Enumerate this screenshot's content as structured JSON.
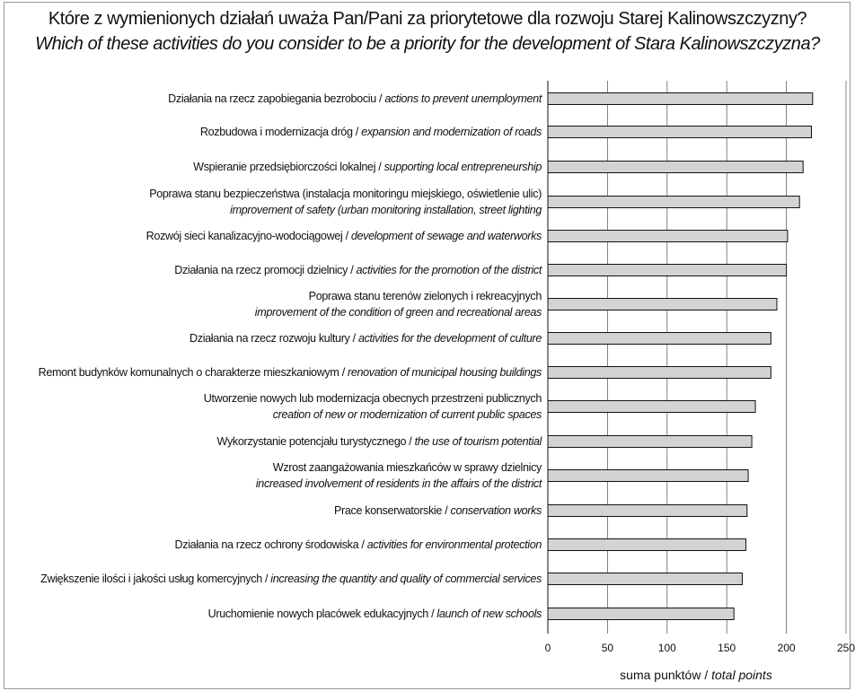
{
  "title_pl": "Które z wymienionych działań uważa Pan/Pani za priorytetowe dla rozwoju  Starej Kalinowszczyzny?",
  "title_en": "Which of these activities do you consider to be a priority for the development of Stara Kalinowszczyzna?",
  "chart_data": {
    "type": "bar",
    "orientation": "horizontal",
    "title": "Które z wymienionych działań uważa Pan/Pani za priorytetowe dla rozwoju  Starej Kalinowszczyzny?",
    "subtitle": "Which of these activities do you consider to be a priority for the development of Stara Kalinowszczyzna?",
    "xlabel": "suma punktów / total points",
    "xlabel_pl": "suma punktów /",
    "xlabel_en": "total points",
    "ylabel": "",
    "xlim": [
      0,
      250
    ],
    "xticks": [
      0,
      50,
      100,
      150,
      200,
      250
    ],
    "grid": "vertical",
    "legend": "none",
    "bar_color": "#d3d3d3",
    "bar_edge_color": "#111111",
    "categories": [
      {
        "lines": [
          {
            "pl": "Działania na rzecz zapobiegania bezrobociu / ",
            "en": "actions to prevent unemployment"
          }
        ]
      },
      {
        "lines": [
          {
            "pl": "Rozbudowa i modernizacja dróg / ",
            "en": "expansion and modernization of roads"
          }
        ]
      },
      {
        "lines": [
          {
            "pl": "Wspieranie przedsiębiorczości lokalnej / ",
            "en": "supporting local entrepreneurship"
          }
        ]
      },
      {
        "lines": [
          {
            "pl": "Poprawa stanu bezpieczeństwa (instalacja monitoringu miejskiego, oświetlenie ulic)",
            "en": ""
          },
          {
            "pl": "",
            "en": "improvement of safety (urban monitoring installation, street lighting"
          }
        ]
      },
      {
        "lines": [
          {
            "pl": "Rozwój sieci kanalizacyjno-wodociągowej / ",
            "en": "development of sewage and waterworks"
          }
        ]
      },
      {
        "lines": [
          {
            "pl": "Działania na rzecz promocji dzielnicy / ",
            "en": "activities for the promotion of the district"
          }
        ]
      },
      {
        "lines": [
          {
            "pl": "Poprawa stanu terenów zielonych i rekreacyjnych",
            "en": ""
          },
          {
            "pl": "",
            "en": "improvement of the condition of green and recreational areas"
          }
        ]
      },
      {
        "lines": [
          {
            "pl": "Działania na rzecz rozwoju kultury / ",
            "en": "activities for the development of culture"
          }
        ]
      },
      {
        "lines": [
          {
            "pl": "Remont budynków komunalnych o charakterze mieszkaniowym / ",
            "en": "renovation of municipal housing buildings"
          }
        ]
      },
      {
        "lines": [
          {
            "pl": "Utworzenie nowych lub modernizacja obecnych przestrzeni publicznych",
            "en": ""
          },
          {
            "pl": "",
            "en": "creation of new or modernization of current public spaces"
          }
        ]
      },
      {
        "lines": [
          {
            "pl": "Wykorzystanie potencjału turystycznego / ",
            "en": "the use of tourism potential"
          }
        ]
      },
      {
        "lines": [
          {
            "pl": "Wzrost zaangażowania mieszkańców w sprawy dzielnicy",
            "en": ""
          },
          {
            "pl": "",
            "en": "increased involvement of residents in the affairs of the district"
          }
        ]
      },
      {
        "lines": [
          {
            "pl": "Prace konserwatorskie / ",
            "en": "conservation works"
          }
        ]
      },
      {
        "lines": [
          {
            "pl": "Działania na rzecz ochrony środowiska / ",
            "en": "activities for environmental protection"
          }
        ]
      },
      {
        "lines": [
          {
            "pl": "Zwiększenie ilości i jakości usług komercyjnych / ",
            "en": "increasing the quantity and quality of commercial services"
          }
        ]
      },
      {
        "lines": [
          {
            "pl": "Uruchomienie nowych placówek edukacyjnych / ",
            "en": "launch of new schools"
          }
        ]
      }
    ],
    "values": [
      222,
      221,
      214,
      211,
      201,
      200,
      192,
      187,
      187,
      174,
      171,
      168,
      167,
      166,
      163,
      156
    ]
  }
}
